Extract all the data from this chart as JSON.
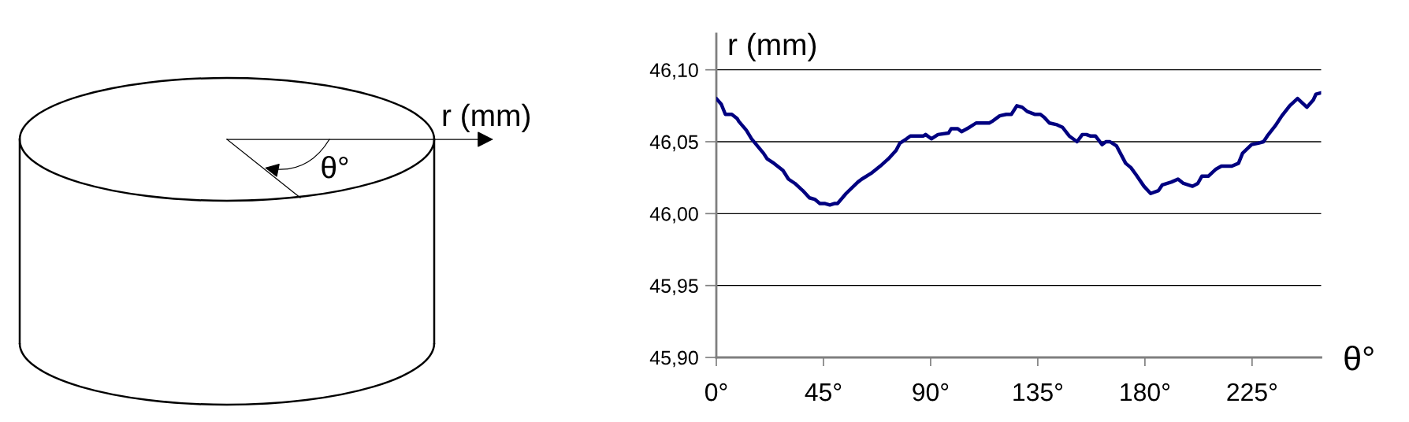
{
  "chart_data": {
    "type": "line",
    "xlabel": "θ°",
    "ylabel": "r (mm)",
    "annotations": [
      "r (mm)",
      "θ°"
    ],
    "x": [
      0,
      2.1,
      3.8,
      6.5,
      8.8,
      9.5,
      12.6,
      14.8,
      19.8,
      21.4,
      24.2,
      28.0,
      30.3,
      33.0,
      36.3,
      39.1,
      41.3,
      43.5,
      45.7,
      47.7,
      49.5,
      50.9,
      54.5,
      59.5,
      61.1,
      65.0,
      68.8,
      72.2,
      75.5,
      77.1,
      79.9,
      81.5,
      87.0,
      87.9,
      90.3,
      93.1,
      97.5,
      98.6,
      101.4,
      103.0,
      106.3,
      109.1,
      114.6,
      115.7,
      119.0,
      121.8,
      123.9,
      126.2,
      128.4,
      130.6,
      133.9,
      136.1,
      137.7,
      139.9,
      142.7,
      145.4,
      148.2,
      151.5,
      153.7,
      155.4,
      157.0,
      159.2,
      162.0,
      163.6,
      165.3,
      168.1,
      171.9,
      174.1,
      176.3,
      179.6,
      182.4,
      185.7,
      187.3,
      191.2,
      193.9,
      196.2,
      200.0,
      202.2,
      203.9,
      206.6,
      209.9,
      212.1,
      216.5,
      219.3,
      221.0,
      224.8,
      227.6,
      229.8,
      231.4,
      234.7,
      237.5,
      240.8,
      244.1,
      248.0,
      250.7,
      251.8,
      254.0
    ],
    "values": [
      46.08,
      46.076,
      46.069,
      46.069,
      46.066,
      46.064,
      46.058,
      46.052,
      46.042,
      46.038,
      46.035,
      46.03,
      46.024,
      46.021,
      46.016,
      46.011,
      46.01,
      46.007,
      46.007,
      46.006,
      46.007,
      46.007,
      46.014,
      46.022,
      46.024,
      46.028,
      46.033,
      46.038,
      46.044,
      46.049,
      46.052,
      46.054,
      46.054,
      46.055,
      46.052,
      46.055,
      46.056,
      46.059,
      46.059,
      46.057,
      46.06,
      46.063,
      46.063,
      46.064,
      46.068,
      46.069,
      46.069,
      46.075,
      46.074,
      46.071,
      46.069,
      46.069,
      46.067,
      46.063,
      46.062,
      46.06,
      46.054,
      46.05,
      46.055,
      46.055,
      46.054,
      46.054,
      46.048,
      46.05,
      46.05,
      46.047,
      46.035,
      46.032,
      46.027,
      46.019,
      46.014,
      46.016,
      46.02,
      46.022,
      46.024,
      46.021,
      46.019,
      46.021,
      46.026,
      46.026,
      46.031,
      46.033,
      46.033,
      46.035,
      46.042,
      46.048,
      46.049,
      46.05,
      46.054,
      46.061,
      46.068,
      46.075,
      46.08,
      46.074,
      46.079,
      46.083,
      46.084
    ],
    "color": "#000080",
    "xlim": [
      0,
      254
    ],
    "ylim": [
      45.9,
      46.125
    ],
    "xticks": [
      {
        "value": 0,
        "label": "0°"
      },
      {
        "value": 45,
        "label": "45°"
      },
      {
        "value": 90,
        "label": "90°"
      },
      {
        "value": 135,
        "label": "135°"
      },
      {
        "value": 180,
        "label": "180°"
      },
      {
        "value": 225,
        "label": "225°"
      }
    ],
    "yticks": [
      {
        "value": 45.9,
        "label": "45,90"
      },
      {
        "value": 45.95,
        "label": "45,95"
      },
      {
        "value": 46.0,
        "label": "46,00"
      },
      {
        "value": 46.05,
        "label": "46,05"
      },
      {
        "value": 46.1,
        "label": "46,10"
      }
    ],
    "grid": "y"
  }
}
